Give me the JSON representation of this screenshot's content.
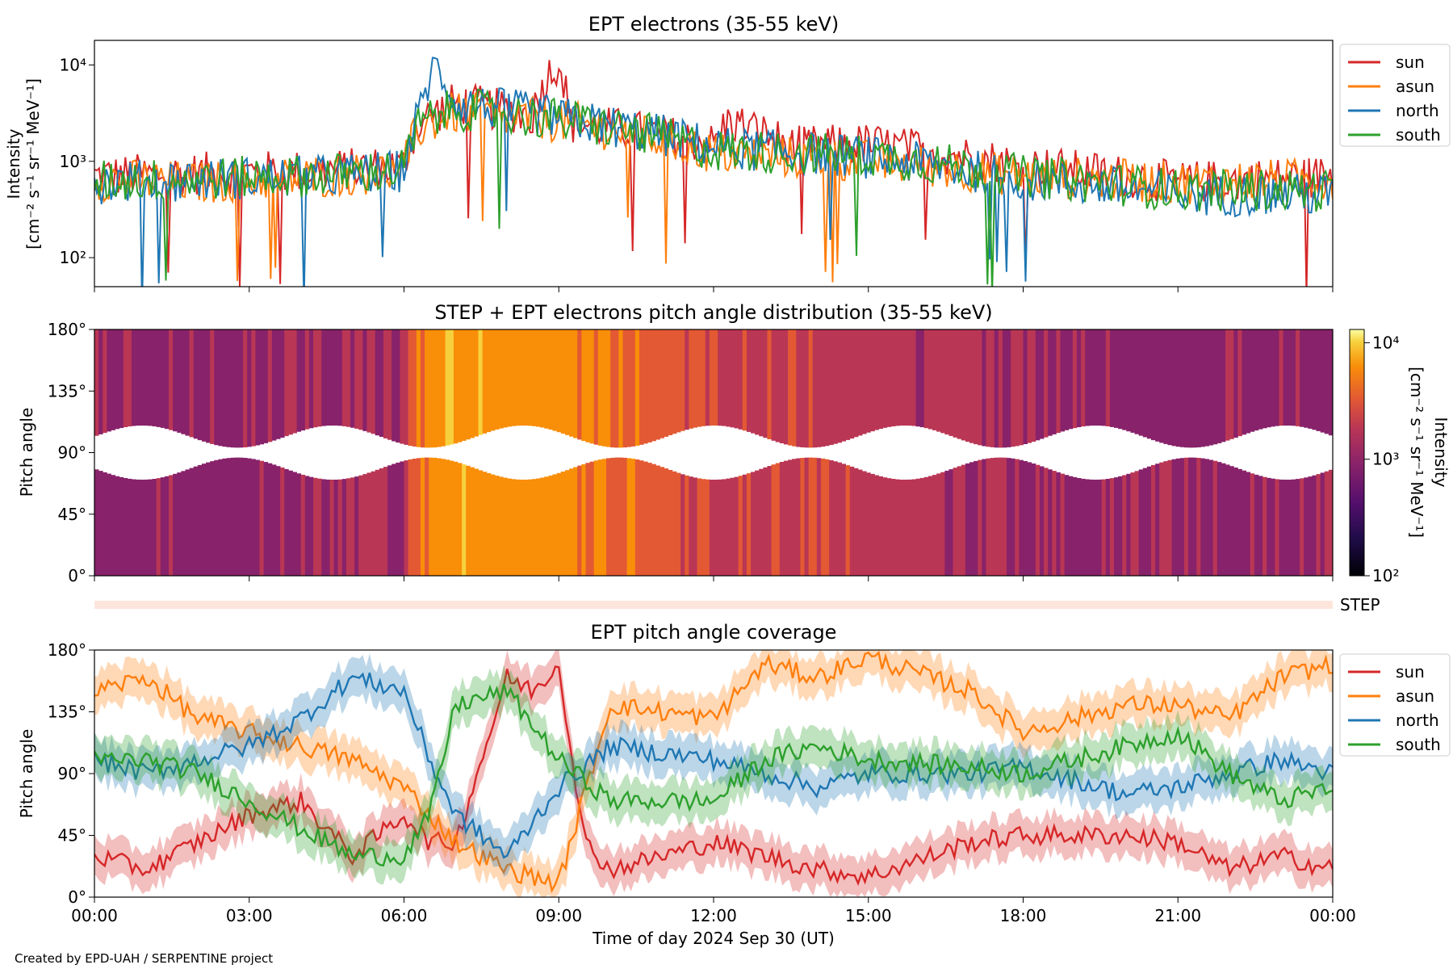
{
  "credit": "Created by EPD-UAH / SERPENTINE project",
  "colors": {
    "sun": "#d62728",
    "asun": "#ff7f0e",
    "north": "#1f77b4",
    "south": "#2ca02c"
  },
  "chart_data": [
    {
      "type": "line",
      "title": "EPT electrons (35-55 keV)",
      "ylabel_line1": "Intensity",
      "ylabel_line2": "[cm⁻² s⁻¹ sr⁻¹ MeV⁻¹]",
      "yscale": "log",
      "ylim": [
        50,
        18000
      ],
      "yticks": [
        "10²",
        "10³",
        "10⁴"
      ],
      "grid": false,
      "legend_position": "outside-right-top",
      "x_range_hours": [
        0,
        24
      ],
      "series": [
        {
          "name": "sun",
          "key": "sun",
          "x_hours": [
            0,
            2,
            4.5,
            6,
            6.3,
            7,
            8.5,
            9.0,
            9.2,
            12,
            12.3,
            13.5,
            15,
            18,
            21,
            24
          ],
          "values": [
            700,
            750,
            800,
            900,
            2500,
            4000,
            3000,
            11000,
            2500,
            1500,
            2600,
            1400,
            1500,
            900,
            600,
            700
          ]
        },
        {
          "name": "asun",
          "key": "asun",
          "x_hours": [
            0,
            2,
            4.5,
            6,
            6.3,
            7,
            9,
            12,
            15,
            18,
            21,
            24
          ],
          "values": [
            650,
            600,
            700,
            800,
            2200,
            3200,
            2600,
            1200,
            1000,
            700,
            600,
            650
          ]
        },
        {
          "name": "north",
          "key": "north",
          "x_hours": [
            0,
            2,
            4.5,
            6,
            6.3,
            6.6,
            7,
            9,
            12,
            15,
            18,
            21,
            24
          ],
          "values": [
            600,
            650,
            700,
            800,
            3000,
            9500,
            4000,
            2800,
            1400,
            1100,
            650,
            450,
            450
          ]
        },
        {
          "name": "south",
          "key": "south",
          "x_hours": [
            0,
            2,
            4.5,
            6,
            6.3,
            7,
            9,
            12,
            15,
            18,
            21,
            24
          ],
          "values": [
            620,
            660,
            720,
            820,
            2400,
            3500,
            2700,
            1300,
            1150,
            700,
            500,
            500
          ]
        }
      ]
    },
    {
      "type": "heatmap",
      "title": "STEP + EPT electrons pitch angle distribution (35-55 keV)",
      "ylabel": "Pitch angle",
      "yticks": [
        "0°",
        "45°",
        "90°",
        "135°",
        "180°"
      ],
      "ylim": [
        0,
        180
      ],
      "colorbar": {
        "label_line1": "Intensity",
        "label_line2": "[cm⁻² s⁻¹ sr⁻¹ MeV⁻¹]",
        "scale": "log",
        "range": [
          100,
          13000
        ],
        "ticks": [
          "10²",
          "10³",
          "10⁴"
        ],
        "colormap": "inferno"
      },
      "x_range_hours": [
        0,
        24
      ],
      "step_label": "STEP"
    },
    {
      "type": "line",
      "title": "EPT pitch angle coverage",
      "ylabel": "Pitch angle",
      "yticks": [
        "0°",
        "45°",
        "90°",
        "135°",
        "180°"
      ],
      "ylim": [
        0,
        180
      ],
      "xlabel": "Time of day 2024 Sep 30 (UT)",
      "xticks": [
        "00:00",
        "03:00",
        "06:00",
        "09:00",
        "12:00",
        "15:00",
        "18:00",
        "21:00",
        "00:00"
      ],
      "x_range_hours": [
        0,
        24
      ],
      "legend_position": "outside-right-top",
      "series": [
        {
          "name": "sun",
          "key": "sun",
          "x_hours": [
            0,
            1,
            2,
            3,
            4,
            5,
            6,
            6.5,
            7,
            8,
            8.5,
            9,
            9.5,
            10,
            12,
            13,
            14,
            15,
            17,
            18,
            20,
            21,
            22,
            23,
            24
          ],
          "values": [
            30,
            20,
            40,
            60,
            70,
            30,
            60,
            40,
            40,
            160,
            150,
            170,
            40,
            20,
            40,
            30,
            20,
            15,
            40,
            45,
            45,
            40,
            20,
            30,
            20
          ]
        },
        {
          "name": "asun",
          "key": "asun",
          "x_hours": [
            0,
            1,
            2,
            3,
            4,
            5,
            6,
            7,
            8,
            9,
            10,
            12,
            13,
            14,
            15,
            17,
            18,
            20,
            21,
            22,
            23,
            24
          ],
          "values": [
            150,
            160,
            130,
            120,
            110,
            100,
            80,
            40,
            20,
            10,
            140,
            130,
            170,
            160,
            175,
            150,
            120,
            140,
            140,
            130,
            160,
            170
          ]
        },
        {
          "name": "north",
          "key": "north",
          "x_hours": [
            0,
            1,
            2,
            3,
            4,
            5,
            6,
            6.5,
            7,
            8,
            9,
            10,
            12,
            13,
            14,
            15,
            17,
            18,
            20,
            21,
            22,
            23,
            24
          ],
          "values": [
            100,
            90,
            100,
            110,
            130,
            160,
            150,
            100,
            60,
            30,
            80,
            110,
            100,
            90,
            80,
            90,
            90,
            95,
            75,
            80,
            90,
            100,
            90
          ]
        },
        {
          "name": "south",
          "key": "south",
          "x_hours": [
            0,
            1,
            2,
            3,
            4,
            5,
            6,
            6.5,
            7,
            8,
            9,
            10,
            12,
            13,
            14,
            15,
            17,
            18,
            20,
            21,
            22,
            23,
            24
          ],
          "values": [
            100,
            100,
            90,
            70,
            50,
            30,
            30,
            60,
            140,
            150,
            100,
            70,
            70,
            100,
            110,
            100,
            95,
            90,
            110,
            120,
            90,
            70,
            80
          ]
        }
      ]
    }
  ]
}
